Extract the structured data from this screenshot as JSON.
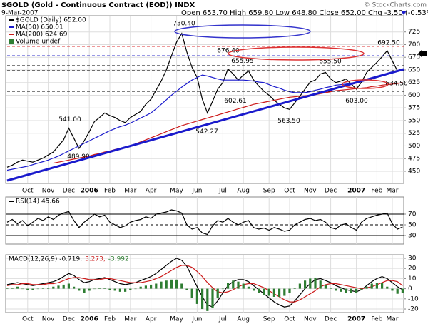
{
  "chart_data": [
    {
      "type": "line",
      "title": "$GOLD (Gold - Continuous Contract (EOD)) INDX",
      "date": "9-Mar-2007",
      "quote": "Open 653.70 High 659.80 Low 648.80 Close 652.00 Chg -3.50 (-0.53%)",
      "source": "© StockCharts.com",
      "legend_extra": "Volume undef",
      "categories": [
        null,
        null,
        null,
        null,
        "Oct",
        null,
        null,
        null,
        "Nov",
        null,
        null,
        null,
        "Dec",
        null,
        null,
        null,
        "2006",
        null,
        null,
        null,
        "Feb",
        null,
        null,
        null,
        "Mar",
        null,
        null,
        null,
        "Apr",
        null,
        null,
        null,
        null,
        "May",
        null,
        null,
        null,
        "Jun",
        null,
        null,
        null,
        null,
        "Jul",
        null,
        null,
        null,
        "Aug",
        null,
        null,
        null,
        null,
        "Sep",
        null,
        null,
        null,
        "Oct",
        null,
        null,
        null,
        "Nov",
        null,
        null,
        null,
        "Dec",
        null,
        null,
        null,
        null,
        "2007",
        null,
        null,
        null,
        "Feb",
        null,
        null,
        "Mar",
        null,
        null
      ],
      "series": [
        {
          "name": "$GOLD (Daily) 652.00",
          "color": "#000000",
          "values": [
            458,
            462,
            468,
            472,
            470,
            468,
            472,
            476,
            482,
            488,
            500,
            512,
            535,
            515,
            495,
            510,
            528,
            548,
            556,
            565,
            560,
            556,
            550,
            546,
            556,
            562,
            568,
            582,
            592,
            610,
            628,
            650,
            678,
            705,
            722,
            685,
            655,
            635,
            592,
            565,
            588,
            612,
            625,
            652,
            642,
            630,
            640,
            648,
            630,
            618,
            608,
            600,
            590,
            582,
            575,
            572,
            585,
            598,
            612,
            626,
            630,
            642,
            645,
            632,
            625,
            628,
            632,
            622,
            612,
            626,
            645,
            655,
            665,
            676,
            688,
            668,
            648,
            652
          ]
        },
        {
          "name": "MA(50) 650.01",
          "color": "#1a1acc",
          "values": [
            452,
            454,
            456,
            458,
            460,
            463,
            466,
            469,
            472,
            476,
            480,
            485,
            490,
            495,
            500,
            505,
            510,
            515,
            520,
            525,
            530,
            534,
            538,
            541,
            545,
            550,
            555,
            560,
            565,
            573,
            582,
            591,
            600,
            608,
            616,
            623,
            630,
            635,
            640,
            638,
            635,
            632,
            630,
            630,
            630,
            630,
            630,
            629,
            628,
            626,
            625,
            621,
            617,
            614,
            610,
            607,
            605,
            605,
            605,
            607,
            610,
            612,
            615,
            617,
            620,
            621,
            622,
            624,
            625,
            628,
            630,
            632,
            635,
            638,
            641,
            645,
            648,
            650
          ]
        },
        {
          "name": "MA(200) 624.69",
          "color": "#cc1a1a",
          "values": [
            null,
            null,
            null,
            null,
            null,
            null,
            null,
            null,
            null,
            466,
            468,
            470,
            472,
            474,
            476,
            478,
            480,
            483,
            485,
            488,
            490,
            493,
            495,
            498,
            500,
            504,
            508,
            512,
            516,
            520,
            524,
            528,
            532,
            536,
            540,
            543,
            546,
            549,
            552,
            555,
            558,
            561,
            564,
            567,
            570,
            573,
            576,
            579,
            582,
            584,
            586,
            588,
            590,
            592,
            594,
            596,
            597,
            598,
            599,
            600,
            601,
            603,
            605,
            607,
            609,
            610,
            611,
            612,
            613,
            614,
            615,
            617,
            618,
            620,
            621,
            622,
            623,
            625
          ]
        }
      ],
      "annotations": [
        {
          "value": 730.4,
          "label": "730.40"
        },
        {
          "value": 676.4,
          "label": "676.40"
        },
        {
          "value": 655.95,
          "label": "655.95"
        },
        {
          "value": 655.5,
          "label": "655.50"
        },
        {
          "value": 692.5,
          "label": "692.50"
        },
        {
          "value": 634.5,
          "label": "634.50"
        },
        {
          "value": 603.0,
          "label": "603.00"
        },
        {
          "value": 563.5,
          "label": "563.50"
        },
        {
          "value": 602.61,
          "label": "602.61"
        },
        {
          "value": 542.27,
          "label": "542.27"
        },
        {
          "value": 541.0,
          "label": "541.00"
        },
        {
          "value": 489.9,
          "label": "489.90"
        }
      ],
      "ylim": [
        426,
        757
      ],
      "yticks": [
        450,
        475,
        500,
        525,
        550,
        575,
        600,
        625,
        650,
        675,
        700,
        725
      ],
      "grid": true
    },
    {
      "type": "line",
      "series": [
        {
          "name": "RSI(14) 45.66",
          "color": "#000000",
          "values": [
            55,
            60,
            52,
            58,
            48,
            55,
            62,
            58,
            65,
            60,
            68,
            72,
            75,
            58,
            45,
            55,
            62,
            70,
            65,
            68,
            55,
            50,
            45,
            48,
            55,
            58,
            60,
            65,
            62,
            70,
            72,
            74,
            78,
            76,
            72,
            50,
            42,
            45,
            35,
            32,
            48,
            58,
            55,
            62,
            55,
            50,
            55,
            58,
            45,
            42,
            44,
            40,
            45,
            42,
            38,
            40,
            50,
            55,
            60,
            62,
            58,
            60,
            55,
            45,
            42,
            50,
            52,
            45,
            40,
            55,
            62,
            65,
            68,
            70,
            72,
            52,
            42,
            46
          ]
        }
      ],
      "ylim": [
        14,
        102
      ],
      "yticks": [
        30,
        50,
        70
      ]
    },
    {
      "type": "line",
      "series": [
        {
          "name": "MACD(12,26,9) -0.719,",
          "color": "#000000",
          "values": [
            4,
            5,
            6,
            5,
            4,
            3,
            4,
            5,
            6,
            7,
            9,
            12,
            15,
            13,
            9,
            6,
            7,
            9,
            10,
            11,
            9,
            7,
            5,
            4,
            5,
            6,
            8,
            10,
            12,
            15,
            19,
            23,
            27,
            30,
            28,
            22,
            12,
            2,
            -8,
            -16,
            -18,
            -12,
            -4,
            3,
            7,
            9,
            9,
            7,
            3,
            -1,
            -5,
            -9,
            -13,
            -16,
            -18,
            -17,
            -12,
            -6,
            0,
            5,
            9,
            10,
            8,
            6,
            3,
            1,
            -1,
            -2,
            -3,
            -1,
            3,
            7,
            10,
            12,
            10,
            6,
            2,
            -1
          ]
        },
        {
          "name": "3.273,",
          "color": "#cc1a1a",
          "values": [
            3,
            4,
            4,
            5,
            5,
            4,
            4,
            4,
            5,
            5,
            6,
            8,
            10,
            11,
            11,
            10,
            9,
            9,
            9,
            10,
            10,
            9,
            8,
            7,
            6,
            6,
            6,
            7,
            8,
            10,
            12,
            15,
            18,
            21,
            23,
            23,
            21,
            17,
            12,
            6,
            1,
            -3,
            -4,
            -3,
            -1,
            2,
            4,
            5,
            5,
            3,
            1,
            -2,
            -5,
            -8,
            -11,
            -13,
            -13,
            -11,
            -8,
            -5,
            -2,
            2,
            4,
            5,
            5,
            4,
            3,
            2,
            1,
            0,
            1,
            2,
            4,
            6,
            8,
            8,
            7,
            3
          ]
        },
        {
          "name": "-3.992",
          "color": "#2e7d32",
          "kind": "bar",
          "values": [
            1,
            1,
            2,
            0,
            -1,
            -1,
            0,
            1,
            1,
            2,
            3,
            4,
            5,
            2,
            -2,
            -4,
            -2,
            0,
            1,
            1,
            -1,
            -2,
            -3,
            -3,
            -1,
            0,
            2,
            3,
            4,
            5,
            7,
            8,
            9,
            9,
            5,
            -1,
            -9,
            -15,
            -20,
            -22,
            -19,
            -9,
            0,
            6,
            8,
            7,
            5,
            2,
            -2,
            -4,
            -6,
            -7,
            -8,
            -8,
            -7,
            -4,
            1,
            5,
            8,
            10,
            11,
            8,
            4,
            1,
            -2,
            -3,
            -4,
            -4,
            -4,
            -1,
            2,
            5,
            6,
            6,
            2,
            -2,
            -5,
            -4
          ]
        }
      ],
      "ylim": [
        -23.5,
        33.5
      ],
      "yticks": [
        -20,
        -10,
        0,
        10,
        20,
        30
      ],
      "grid": true
    }
  ]
}
